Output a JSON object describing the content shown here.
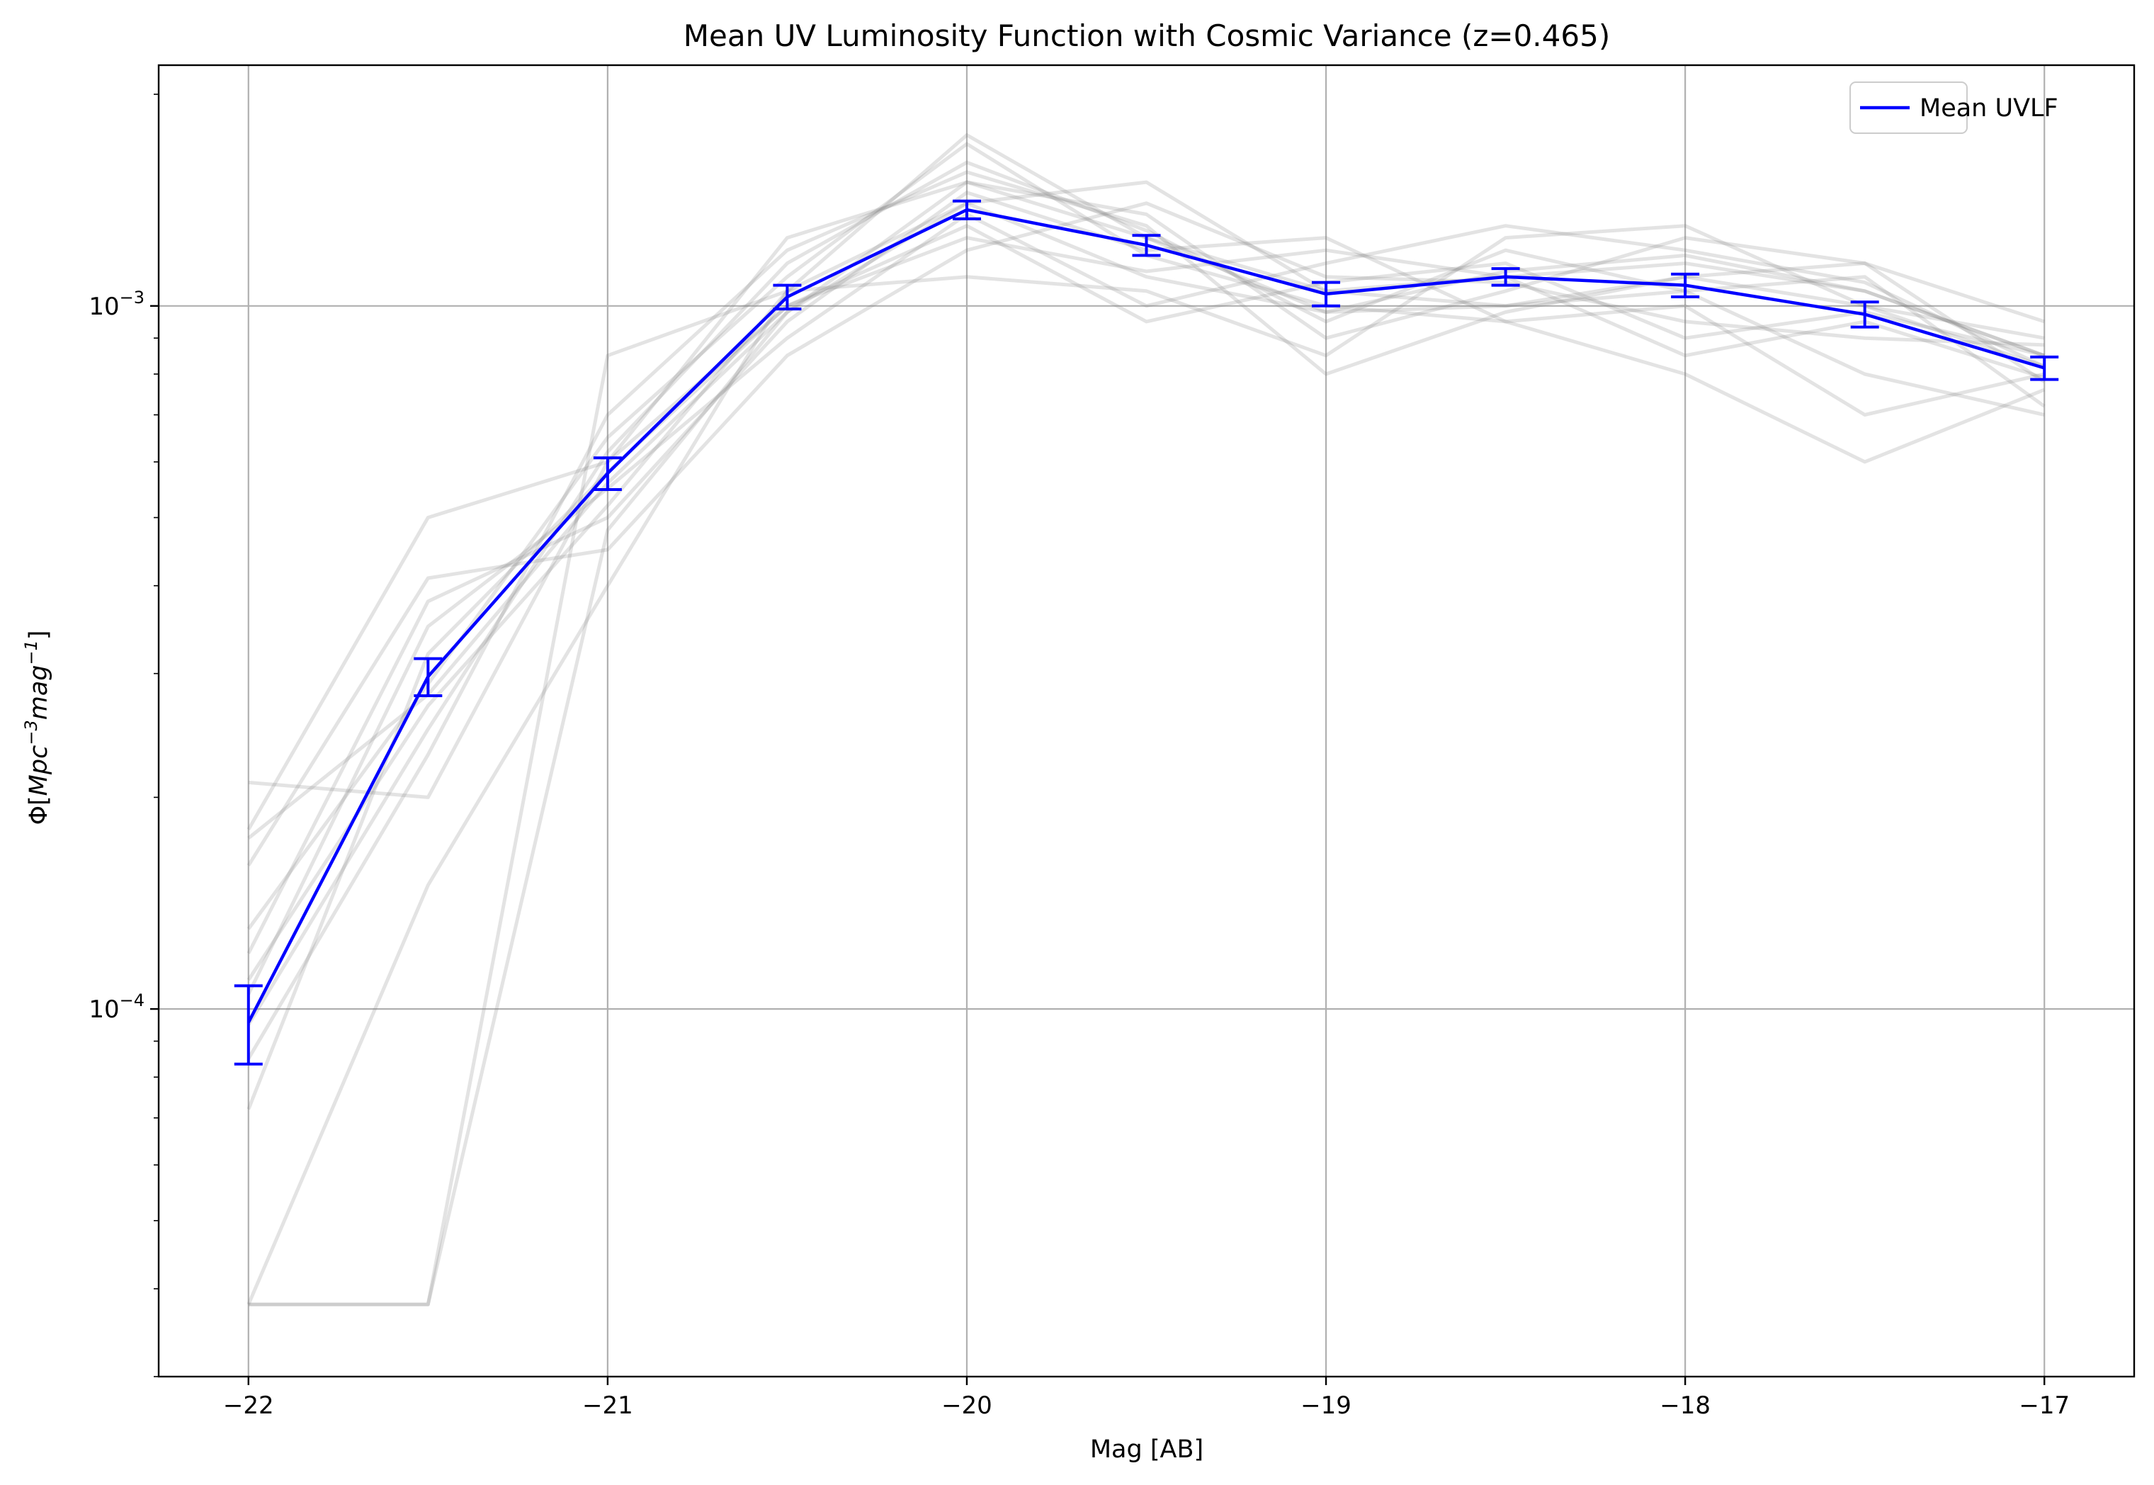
{
  "chart_data": {
    "type": "line",
    "title": "Mean UV Luminosity Function with Cosmic Variance (z=0.465)",
    "xlabel": "Mag [AB]",
    "ylabel": "Φ[Mpc⁻³mag⁻¹]",
    "xlim": [
      -22.25,
      -16.75
    ],
    "ylim": [
      3e-05,
      0.0022
    ],
    "yscale": "log",
    "grid": true,
    "legend": {
      "placement": "top-right",
      "entries": [
        "Mean UVLF"
      ]
    },
    "x_ticks": [
      {
        "value": -22,
        "label": "−22"
      },
      {
        "value": -21,
        "label": "−21"
      },
      {
        "value": -20,
        "label": "−20"
      },
      {
        "value": -19,
        "label": "−19"
      },
      {
        "value": -18,
        "label": "−18"
      },
      {
        "value": -17,
        "label": "−17"
      }
    ],
    "y_ticks": [
      {
        "value": 0.001,
        "base": "10",
        "exp": "−3"
      },
      {
        "value": 0.0001,
        "base": "10",
        "exp": "−4"
      }
    ],
    "x": [
      -22,
      -21.5,
      -21,
      -20.5,
      -20,
      -19.5,
      -19,
      -18.5,
      -18,
      -17.5,
      -17
    ],
    "series": [
      {
        "name": "Mean UVLF",
        "color": "#0000ff",
        "values": [
          9.57e-05,
          0.000297,
          0.000578,
          0.00103,
          0.00137,
          0.00122,
          0.00104,
          0.0011,
          0.00107,
          0.000973,
          0.000816
        ],
        "err_low": [
          1.22e-05,
          1.8e-05,
          3e-05,
          4e-05,
          4e-05,
          4e-05,
          4e-05,
          3e-05,
          4e-05,
          4e-05,
          3e-05
        ],
        "err_high": [
          1.22e-05,
          1.8e-05,
          3e-05,
          4e-05,
          4e-05,
          4e-05,
          4e-05,
          3e-05,
          4e-05,
          4e-05,
          3e-05
        ]
      }
    ],
    "realizations": {
      "color": "#808080",
      "values": [
        [
          3.8e-05,
          3.8e-05,
          0.00085,
          0.00105,
          0.00175,
          0.00125,
          0.00105,
          0.0011,
          0.00115,
          0.00105,
          0.00085
        ],
        [
          0.000175,
          0.00028,
          0.00056,
          0.00098,
          0.0014,
          0.0011,
          0.00098,
          0.001,
          0.0011,
          0.001,
          0.00082
        ],
        [
          0.00021,
          0.0002,
          0.0006,
          0.00125,
          0.0015,
          0.00135,
          0.0009,
          0.00105,
          0.00125,
          0.00115,
          0.00078
        ],
        [
          7.2e-05,
          0.00032,
          0.00058,
          0.001,
          0.0013,
          0.00095,
          0.00108,
          0.00115,
          0.0009,
          0.00098,
          0.00085
        ],
        [
          0.00012,
          0.00038,
          0.0005,
          0.00095,
          0.00145,
          0.0012,
          0.00125,
          0.00095,
          0.001,
          0.0007,
          0.0008
        ],
        [
          9.5e-05,
          0.00025,
          0.00062,
          0.00115,
          0.0016,
          0.00128,
          0.00095,
          0.0012,
          0.00105,
          0.0011,
          0.00072
        ],
        [
          0.00016,
          0.00041,
          0.00045,
          0.00085,
          0.0012,
          0.0014,
          0.0011,
          0.00108,
          0.00095,
          0.0009,
          0.00088
        ],
        [
          3.8e-05,
          0.00015,
          0.0004,
          0.00105,
          0.0011,
          0.00105,
          0.00085,
          0.00125,
          0.0013,
          0.001,
          0.0009
        ],
        [
          0.00013,
          0.00029,
          0.00065,
          0.0011,
          0.0017,
          0.00118,
          0.001,
          0.00095,
          0.0008,
          0.0006,
          0.00076
        ],
        [
          0.000105,
          0.00035,
          0.00055,
          0.0009,
          0.00135,
          0.001,
          0.00115,
          0.0013,
          0.0012,
          0.00108,
          0.00082
        ],
        [
          8.5e-05,
          0.00023,
          0.0007,
          0.0012,
          0.00155,
          0.0013,
          0.0008,
          0.00098,
          0.0011,
          0.00115,
          0.00095
        ],
        [
          0.00018,
          0.0005,
          0.0006,
          0.001,
          0.00125,
          0.00112,
          0.0012,
          0.0011,
          0.00085,
          0.00095,
          0.00079
        ],
        [
          0.00011,
          0.00027,
          0.00052,
          0.00105,
          0.0014,
          0.0015,
          0.00105,
          0.001,
          0.00105,
          0.0008,
          0.0007
        ],
        [
          3.8e-05,
          3.8e-05,
          0.00048,
          0.00098,
          0.0015,
          0.00125,
          0.00098,
          0.00112,
          0.00118,
          0.00105,
          0.00085
        ]
      ]
    }
  }
}
